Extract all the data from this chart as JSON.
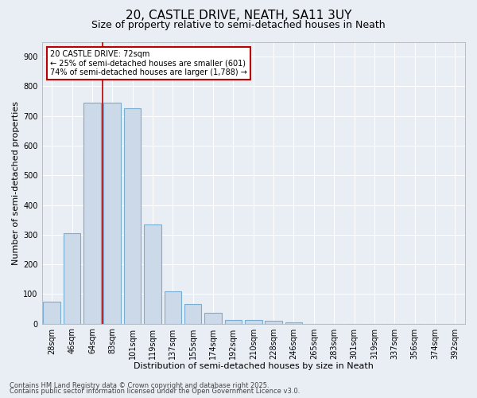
{
  "title_line1": "20, CASTLE DRIVE, NEATH, SA11 3UY",
  "title_line2": "Size of property relative to semi-detached houses in Neath",
  "xlabel": "Distribution of semi-detached houses by size in Neath",
  "ylabel": "Number of semi-detached properties",
  "categories": [
    "28sqm",
    "46sqm",
    "64sqm",
    "83sqm",
    "101sqm",
    "119sqm",
    "137sqm",
    "155sqm",
    "174sqm",
    "192sqm",
    "210sqm",
    "228sqm",
    "246sqm",
    "265sqm",
    "283sqm",
    "301sqm",
    "319sqm",
    "337sqm",
    "356sqm",
    "374sqm",
    "392sqm"
  ],
  "values": [
    75,
    305,
    745,
    745,
    725,
    335,
    110,
    65,
    37,
    13,
    11,
    10,
    5,
    0,
    0,
    0,
    0,
    0,
    0,
    0,
    0
  ],
  "bar_color": "#ccd9e8",
  "bar_edge_color": "#7aaed0",
  "vline_x_pos": 2.5,
  "vline_color": "#bb0000",
  "annotation_text": "20 CASTLE DRIVE: 72sqm\n← 25% of semi-detached houses are smaller (601)\n74% of semi-detached houses are larger (1,788) →",
  "annotation_box_facecolor": "#ffffff",
  "annotation_box_edgecolor": "#bb0000",
  "ylim": [
    0,
    950
  ],
  "yticks": [
    0,
    100,
    200,
    300,
    400,
    500,
    600,
    700,
    800,
    900
  ],
  "background_color": "#e8eef4",
  "grid_color": "#ffffff",
  "footer_line1": "Contains HM Land Registry data © Crown copyright and database right 2025.",
  "footer_line2": "Contains public sector information licensed under the Open Government Licence v3.0.",
  "title_fontsize": 11,
  "subtitle_fontsize": 9,
  "axis_label_fontsize": 8,
  "tick_fontsize": 7,
  "annotation_fontsize": 7,
  "footer_fontsize": 6
}
